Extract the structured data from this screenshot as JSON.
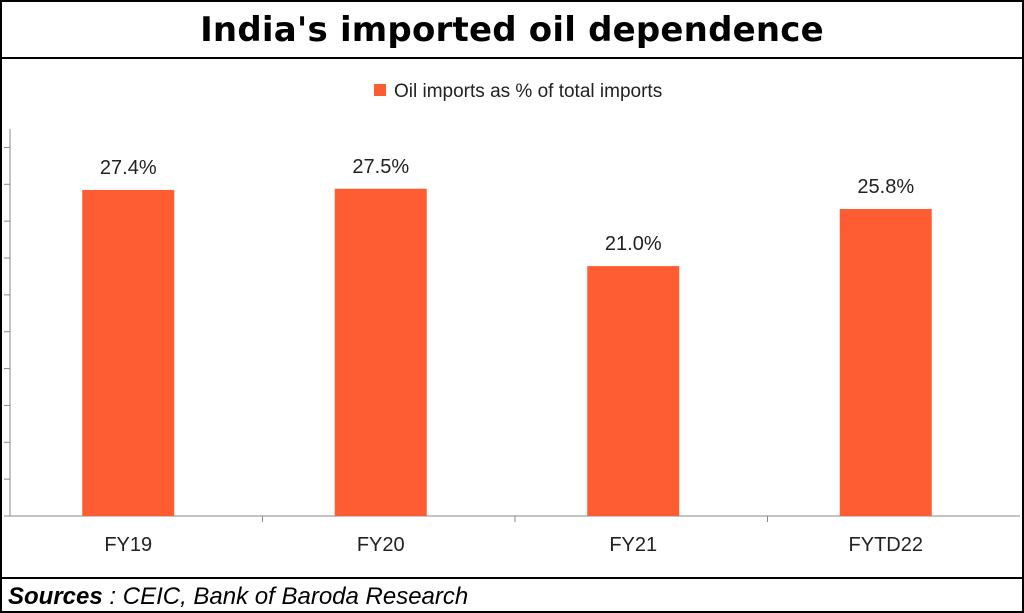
{
  "title": "India's imported oil dependence",
  "footer": {
    "label": "Sources",
    "separator": " : ",
    "text": "CEIC, Bank of Baroda Research"
  },
  "colors": {
    "bar": "#fe5d33",
    "axis": "#888888"
  },
  "chart_data": {
    "type": "bar",
    "categories": [
      "FY19",
      "FY20",
      "FY21",
      "FYTD22"
    ],
    "series": [
      {
        "name": "Oil imports as % of total imports",
        "values": [
          27.4,
          27.5,
          21.0,
          25.8
        ],
        "labels": [
          "27.4%",
          "27.5%",
          "21.0%",
          "25.8%"
        ]
      }
    ],
    "ylim": [
      0,
      30
    ],
    "legend_position": "top-center",
    "grid": false,
    "xlabel": "",
    "ylabel": ""
  }
}
